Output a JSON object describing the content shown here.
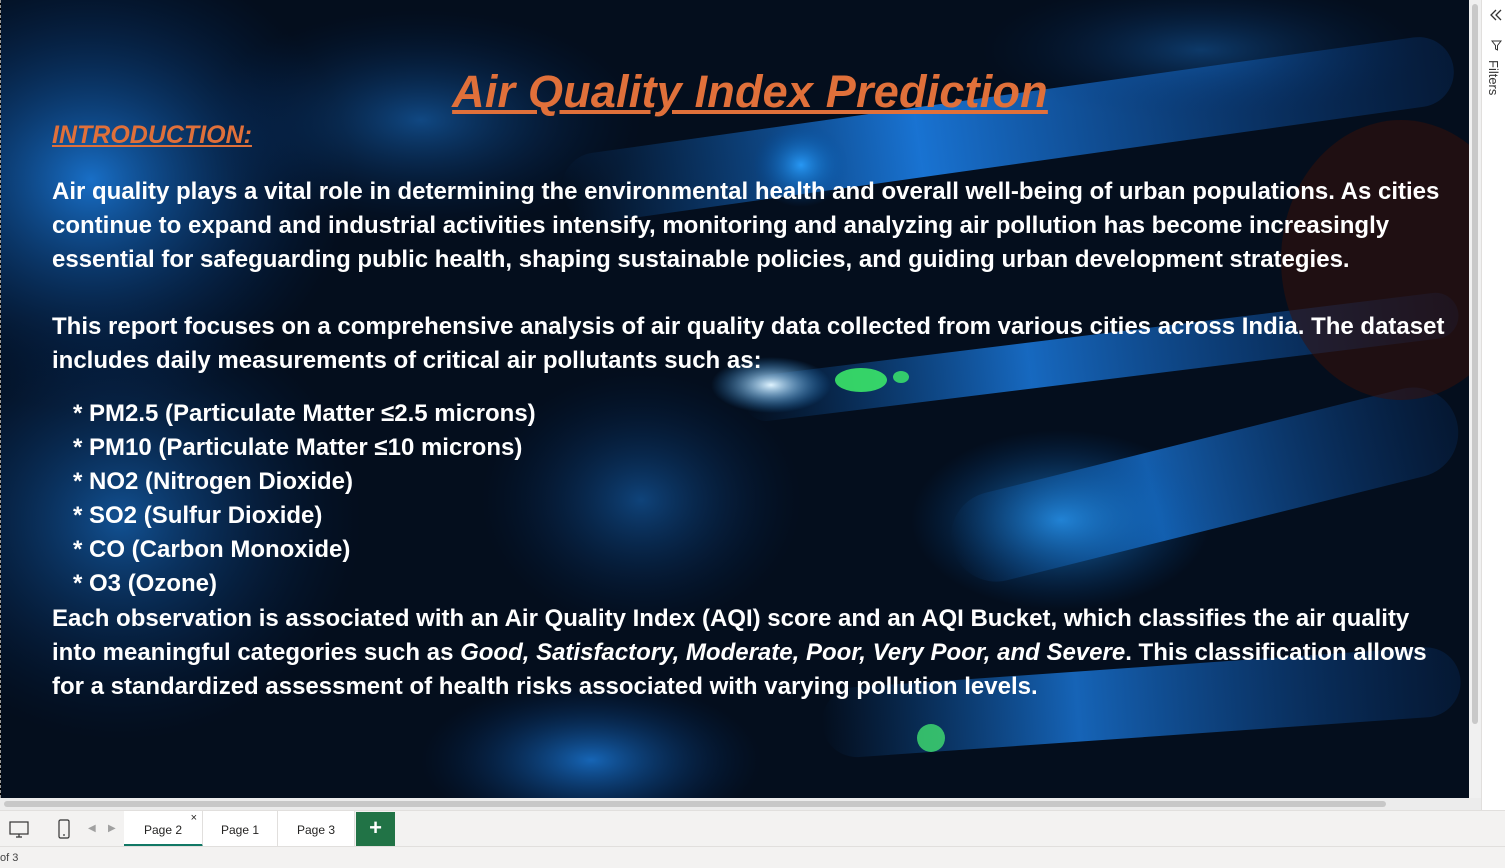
{
  "report": {
    "title": "Air Quality Index Prediction",
    "intro_heading": "INTRODUCTION:",
    "paragraph1": "Air quality plays a vital role in determining the environmental health and overall well-being of urban populations. As cities continue to expand and industrial activities intensify, monitoring and analyzing air pollution has become increasingly essential for safeguarding public health, shaping sustainable policies, and guiding urban development strategies.",
    "paragraph2": "This report focuses on a comprehensive analysis of air quality data collected from various cities across India. The dataset includes daily measurements of critical air pollutants such as:",
    "pollutants": [
      "* PM2.5 (Particulate Matter ≤2.5 microns)",
      "* PM10 (Particulate Matter ≤10 microns)",
      "* NO2 (Nitrogen Dioxide)",
      "* SO2 (Sulfur Dioxide)",
      "* CO (Carbon Monoxide)",
      "* O3 (Ozone)"
    ],
    "paragraph3_start": "Each observation is associated with an Air Quality Index (AQI) score and an AQI Bucket, which classifies the air quality into meaningful categories such as ",
    "paragraph3_italic": "Good, Satisfactory, Moderate, Poor, Very Poor, and Severe",
    "paragraph3_end": ". This classification allows for a standardized assessment of health risks associated with varying pollution levels.",
    "title_color": "#e0703a"
  },
  "filters_pane": {
    "label": "Filters",
    "collapse_icon": "double-chevron-left-icon",
    "filter_icon": "funnel-icon"
  },
  "tabbar": {
    "tabs": [
      {
        "label": "Page 2",
        "active": true
      },
      {
        "label": "Page 1",
        "active": false
      },
      {
        "label": "Page 3",
        "active": false
      }
    ],
    "close_glyph": "×",
    "add_glyph": "+",
    "prev_glyph": "◀",
    "next_glyph": "▶",
    "accent_color": "#117865"
  },
  "status": {
    "page_count": "of 3"
  }
}
